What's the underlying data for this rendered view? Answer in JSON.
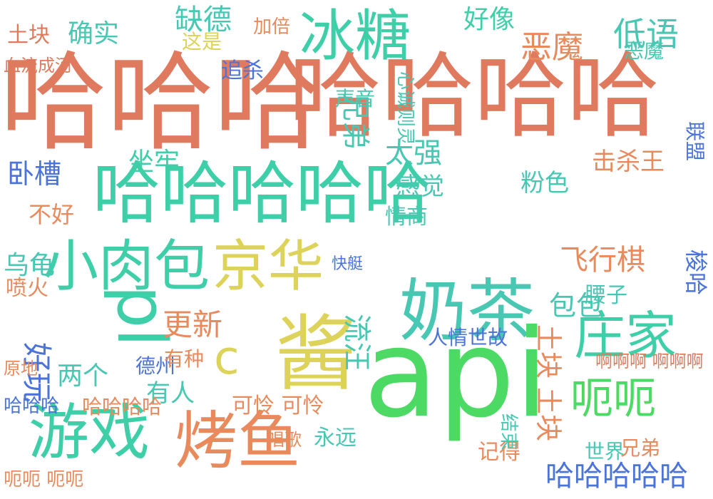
{
  "palette": {
    "red": "#e07a5f",
    "green": "#4cd964",
    "cyan": "#3ecfa8",
    "yellow": "#ddd35a",
    "teal": "#48c7b2",
    "orange": "#e98a5d",
    "blue": "#4b73d8",
    "lime": "#9ad04f"
  },
  "words": [
    {
      "text": "哈哈哈",
      "color": "red"
    },
    {
      "text": "哈哈哈哈",
      "color": "red"
    },
    {
      "text": "冰糖",
      "color": "cyan"
    },
    {
      "text": "哈哈哈哈哈",
      "color": "cyan"
    },
    {
      "text": "小肉包",
      "color": "cyan"
    },
    {
      "text": "京华",
      "color": "yellow"
    },
    {
      "text": "奶茶",
      "color": "teal"
    },
    {
      "text": "api",
      "color": "green"
    },
    {
      "text": "酱",
      "color": "yellow"
    },
    {
      "text": "c",
      "color": "yellow"
    },
    {
      "text": "pl",
      "color": "cyan"
    },
    {
      "text": "庄家",
      "color": "cyan"
    },
    {
      "text": "呃呃",
      "color": "green"
    },
    {
      "text": "游戏",
      "color": "cyan"
    },
    {
      "text": "烤鱼",
      "color": "orange"
    },
    {
      "text": "土块",
      "color": "red"
    },
    {
      "text": "土块 土块",
      "color": "orange"
    },
    {
      "text": "确实",
      "color": "teal"
    },
    {
      "text": "缺德",
      "color": "teal"
    },
    {
      "text": "恶魔",
      "color": "orange"
    },
    {
      "text": "低语",
      "color": "teal"
    },
    {
      "text": "好像",
      "color": "cyan"
    },
    {
      "text": "追杀",
      "color": "blue"
    },
    {
      "text": "加倍",
      "color": "orange"
    },
    {
      "text": "这是",
      "color": "yellow"
    },
    {
      "text": "血流成河",
      "color": "red"
    },
    {
      "text": "兄弟",
      "color": "teal"
    },
    {
      "text": "声音",
      "color": "teal"
    },
    {
      "text": "太强",
      "color": "teal"
    },
    {
      "text": "卧槽",
      "color": "blue"
    },
    {
      "text": "不好",
      "color": "orange"
    },
    {
      "text": "坐牢",
      "color": "cyan"
    },
    {
      "text": "感觉",
      "color": "teal"
    },
    {
      "text": "粉色",
      "color": "teal"
    },
    {
      "text": "击杀王",
      "color": "orange"
    },
    {
      "text": "乌龟",
      "color": "teal"
    },
    {
      "text": "飞行棋",
      "color": "orange"
    },
    {
      "text": "更新",
      "color": "orange"
    },
    {
      "text": "好玩",
      "color": "blue"
    },
    {
      "text": "流汪",
      "color": "teal"
    },
    {
      "text": "包包",
      "color": "teal"
    },
    {
      "text": "腰子",
      "color": "teal"
    },
    {
      "text": "梭哈",
      "color": "blue"
    },
    {
      "text": "联盟",
      "color": "blue"
    },
    {
      "text": "两个",
      "color": "teal"
    },
    {
      "text": "有人",
      "color": "teal"
    },
    {
      "text": "德州",
      "color": "blue"
    },
    {
      "text": "可怜 可怜",
      "color": "orange"
    },
    {
      "text": "哈哈哈",
      "color": "blue"
    },
    {
      "text": "哈哈哈哈",
      "color": "orange"
    },
    {
      "text": "哈哈哈哈哈",
      "color": "blue"
    },
    {
      "text": "恶魔",
      "color": "teal"
    },
    {
      "text": "世界",
      "color": "teal"
    },
    {
      "text": "永远",
      "color": "teal"
    },
    {
      "text": "呃呃 呃呃",
      "color": "orange"
    },
    {
      "text": "记得",
      "color": "orange"
    },
    {
      "text": "结束",
      "color": "teal"
    },
    {
      "text": "人情世故",
      "color": "blue"
    },
    {
      "text": "情商",
      "color": "teal"
    },
    {
      "text": "快艇",
      "color": "blue"
    },
    {
      "text": "心诚则灵",
      "color": "teal"
    },
    {
      "text": "有种",
      "color": "orange"
    },
    {
      "text": "啊啊啊 啊啊啊",
      "color": "red"
    },
    {
      "text": "喷火",
      "color": "orange"
    },
    {
      "text": "兄弟",
      "color": "orange"
    },
    {
      "text": "唱歌",
      "color": "orange"
    },
    {
      "text": "原地",
      "color": "orange"
    }
  ]
}
